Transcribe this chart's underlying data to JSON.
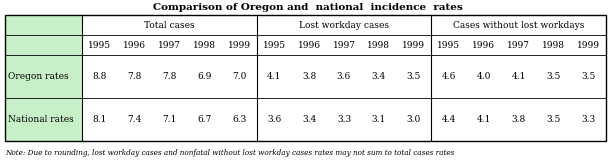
{
  "title": "Comparison of Oregon and  national  incidence  rates",
  "col_groups": [
    {
      "label": "Total cases",
      "years": [
        "1995",
        "1996",
        "1997",
        "1998",
        "1999"
      ]
    },
    {
      "label": "Lost workday cases",
      "years": [
        "1995",
        "1996",
        "1997",
        "1998",
        "1999"
      ]
    },
    {
      "label": "Cases without lost workdays",
      "years": [
        "1995",
        "1996",
        "1997",
        "1998",
        "1999"
      ]
    }
  ],
  "rows": [
    {
      "label": "Oregon rates",
      "total": [
        "8.8",
        "7.8",
        "7.8",
        "6.9",
        "7.0"
      ],
      "lost": [
        "4.1",
        "3.8",
        "3.6",
        "3.4",
        "3.5"
      ],
      "nolost": [
        "4.6",
        "4.0",
        "4.1",
        "3.5",
        "3.5"
      ]
    },
    {
      "label": "National rates",
      "total": [
        "8.1",
        "7.4",
        "7.1",
        "6.7",
        "6.3"
      ],
      "lost": [
        "3.6",
        "3.4",
        "3.3",
        "3.1",
        "3.0"
      ],
      "nolost": [
        "4.4",
        "4.1",
        "3.8",
        "3.5",
        "3.3"
      ]
    }
  ],
  "note": "Note: Due to rounding, lost workday cases and nonfatal without lost workday cases rates may not sum to total cases rates",
  "bg_color": "#c8f0c8",
  "white": "#ffffff",
  "title_fontsize": 7.5,
  "header_fontsize": 6.5,
  "cell_fontsize": 6.5,
  "note_fontsize": 5.2
}
